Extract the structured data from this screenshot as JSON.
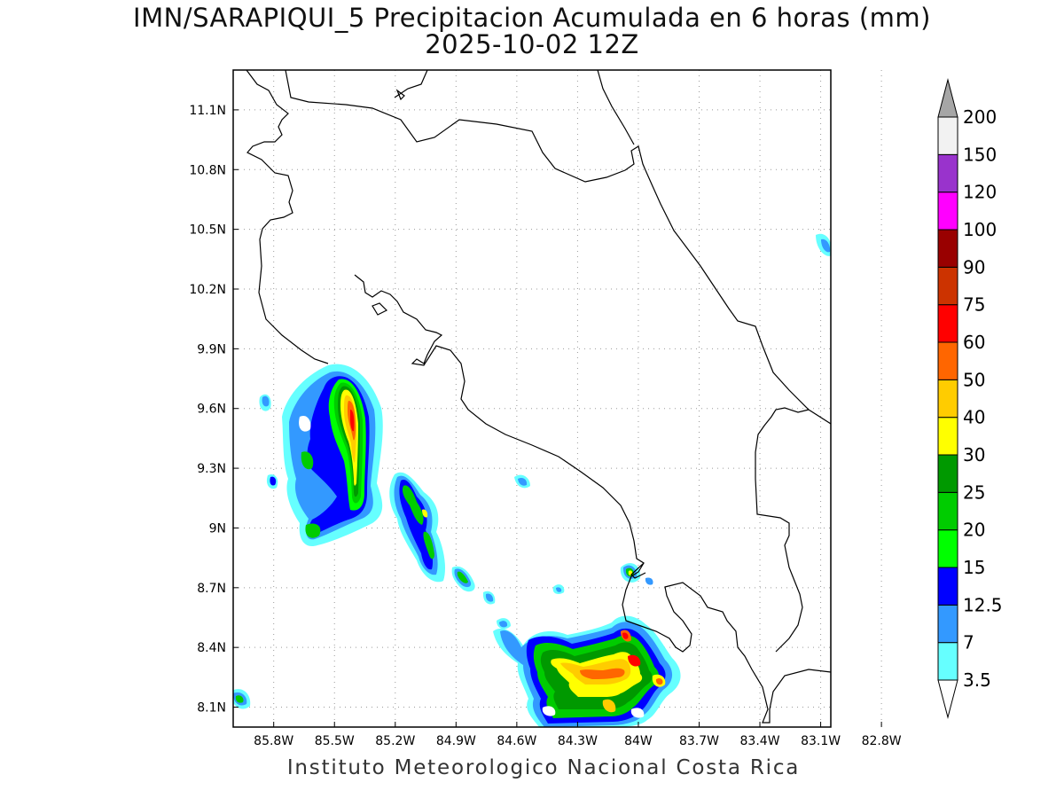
{
  "title": {
    "line1": "IMN/SARAPIQUI_5 Precipitacion Acumulada en 6 horas (mm)",
    "line2": "2025-10-02 12Z"
  },
  "credit": "Instituto Meteorologico Nacional Costa Rica",
  "map": {
    "lon_range": [
      -86.0,
      -83.05
    ],
    "lat_range": [
      8.0,
      11.3
    ],
    "lon_ticks": [
      {
        "value": -85.8,
        "label": "85.8W"
      },
      {
        "value": -85.5,
        "label": "85.5W"
      },
      {
        "value": -85.2,
        "label": "85.2W"
      },
      {
        "value": -84.9,
        "label": "84.9W"
      },
      {
        "value": -84.6,
        "label": "84.6W"
      },
      {
        "value": -84.3,
        "label": "84.3W"
      },
      {
        "value": -84.0,
        "label": "84W"
      },
      {
        "value": -83.7,
        "label": "83.7W"
      },
      {
        "value": -83.4,
        "label": "83.4W"
      },
      {
        "value": -83.1,
        "label": "83.1W"
      },
      {
        "value": -82.8,
        "label": "82.8W"
      }
    ],
    "lat_ticks": [
      {
        "value": 8.1,
        "label": "8.1N"
      },
      {
        "value": 8.4,
        "label": "8.4N"
      },
      {
        "value": 8.7,
        "label": "8.7N"
      },
      {
        "value": 9.0,
        "label": "9N"
      },
      {
        "value": 9.3,
        "label": "9.3N"
      },
      {
        "value": 9.6,
        "label": "9.6N"
      },
      {
        "value": 9.9,
        "label": "9.9N"
      },
      {
        "value": 10.2,
        "label": "10.2N"
      },
      {
        "value": 10.5,
        "label": "10.5N"
      },
      {
        "value": 10.8,
        "label": "10.8N"
      },
      {
        "value": 11.1,
        "label": "11.1N"
      }
    ],
    "grid": true,
    "coastline_color": "#000000"
  },
  "colorbar": {
    "units": "mm",
    "levels": [
      {
        "label": "3.5",
        "color": "#66ffff"
      },
      {
        "label": "7",
        "color": "#3399ff"
      },
      {
        "label": "12.5",
        "color": "#0000ff"
      },
      {
        "label": "15",
        "color": "#00ff00"
      },
      {
        "label": "20",
        "color": "#00cc00"
      },
      {
        "label": "25",
        "color": "#009900"
      },
      {
        "label": "30",
        "color": "#ffff00"
      },
      {
        "label": "40",
        "color": "#ffcc00"
      },
      {
        "label": "50",
        "color": "#ff6600"
      },
      {
        "label": "60",
        "color": "#ff0000"
      },
      {
        "label": "75",
        "color": "#cc3300"
      },
      {
        "label": "90",
        "color": "#990000"
      },
      {
        "label": "100",
        "color": "#ff00ff"
      },
      {
        "label": "120",
        "color": "#9933cc"
      },
      {
        "label": "150",
        "color": "#f2f2f2"
      },
      {
        "label": "200",
        "color": "#a6a6a6"
      }
    ]
  }
}
